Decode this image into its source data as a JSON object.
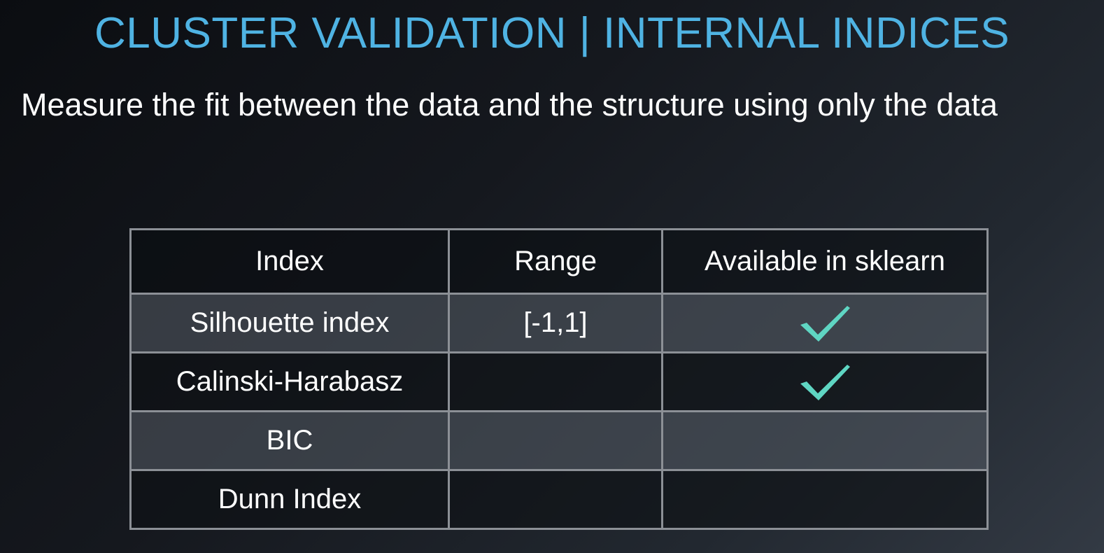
{
  "slide": {
    "title": "CLUSTER VALIDATION | INTERNAL INDICES",
    "subtitle": "Measure the fit between the data and the structure using only the data"
  },
  "table": {
    "headers": [
      "Index",
      "Range",
      "Available in sklearn"
    ],
    "rows": [
      {
        "index": "Silhouette index",
        "range": "[-1,1]",
        "available_in_sklearn": true
      },
      {
        "index": "Calinski-Harabasz",
        "range": "",
        "available_in_sklearn": true
      },
      {
        "index": "BIC",
        "range": "",
        "available_in_sklearn": false
      },
      {
        "index": "Dunn Index",
        "range": "",
        "available_in_sklearn": false
      }
    ]
  },
  "icons": {
    "available": "check-mark-icon"
  },
  "colors": {
    "title": "#4fb3e3",
    "check": "#5fd6c3",
    "table_border": "#8c9096"
  }
}
